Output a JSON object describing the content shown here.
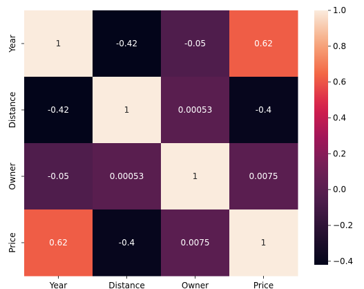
{
  "chart_data": {
    "type": "heatmap",
    "title": "",
    "rows": [
      "Year",
      "Distance",
      "Owner",
      "Price"
    ],
    "columns": [
      "Year",
      "Distance",
      "Owner",
      "Price"
    ],
    "values": [
      [
        1,
        -0.42,
        -0.05,
        0.62
      ],
      [
        -0.42,
        1,
        0.00053,
        -0.4
      ],
      [
        -0.05,
        0.00053,
        1,
        0.0075
      ],
      [
        0.62,
        -0.4,
        0.0075,
        1
      ]
    ],
    "cell_labels": [
      [
        "1",
        "-0.42",
        "-0.05",
        "0.62"
      ],
      [
        "-0.42",
        "1",
        "0.00053",
        "-0.4"
      ],
      [
        "-0.05",
        "0.00053",
        "1",
        "0.0075"
      ],
      [
        "0.62",
        "-0.4",
        "0.0075",
        "1"
      ]
    ],
    "colorbar": {
      "range": [
        -0.42,
        1.0
      ],
      "ticks": [
        -0.4,
        -0.2,
        0.0,
        0.2,
        0.4,
        0.6,
        0.8,
        1.0
      ],
      "tick_labels": [
        "−0.4",
        "−0.2",
        "0.0",
        "0.2",
        "0.4",
        "0.6",
        "0.8",
        "1.0"
      ],
      "colormap": "rocket"
    }
  }
}
